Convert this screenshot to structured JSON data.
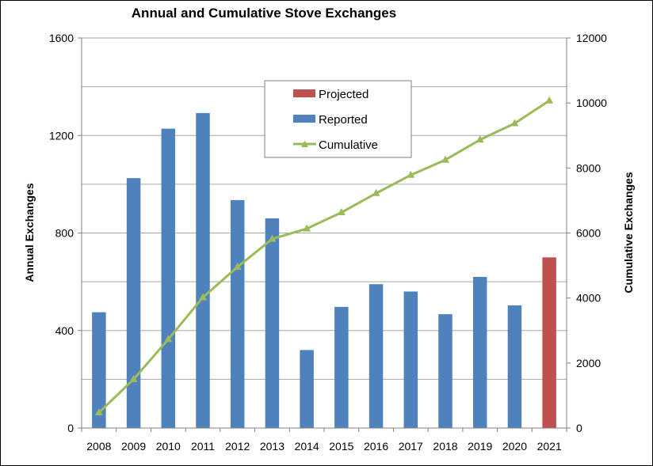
{
  "chart_data": {
    "type": "bar",
    "title": "Annual and Cumulative Stove Exchanges",
    "ylabel": "Annual Exchanges",
    "y2label": "Cumulative Exchanges",
    "categories": [
      "2008",
      "2009",
      "2010",
      "2011",
      "2012",
      "2013",
      "2014",
      "2015",
      "2016",
      "2017",
      "2018",
      "2019",
      "2020",
      "2021"
    ],
    "ylim": [
      0,
      1600
    ],
    "yticks": [
      0,
      400,
      800,
      1200,
      1600
    ],
    "y2lim": [
      0,
      12000
    ],
    "y2ticks": [
      0,
      2000,
      4000,
      6000,
      8000,
      10000,
      12000
    ],
    "grid": true,
    "legend_position": "top-center",
    "series": [
      {
        "name": "Projected",
        "kind": "bar",
        "axis": "left",
        "color": "#c0504d",
        "values": [
          null,
          null,
          null,
          null,
          null,
          null,
          null,
          null,
          null,
          null,
          null,
          null,
          null,
          700
        ]
      },
      {
        "name": "Reported",
        "kind": "bar",
        "axis": "left",
        "color": "#4f81bd",
        "values": [
          475,
          1025,
          1228,
          1292,
          935,
          860,
          320,
          497,
          590,
          560,
          467,
          620,
          503,
          null
        ]
      },
      {
        "name": "Cumulative",
        "kind": "line",
        "axis": "right",
        "marker": "triangle",
        "color": "#9bbb59",
        "values": [
          475,
          1500,
          2728,
          4020,
          4955,
          5815,
          6135,
          6632,
          7222,
          7782,
          8249,
          8869,
          9372,
          10072
        ]
      }
    ],
    "legend": [
      "Projected",
      "Reported",
      "Cumulative"
    ]
  }
}
